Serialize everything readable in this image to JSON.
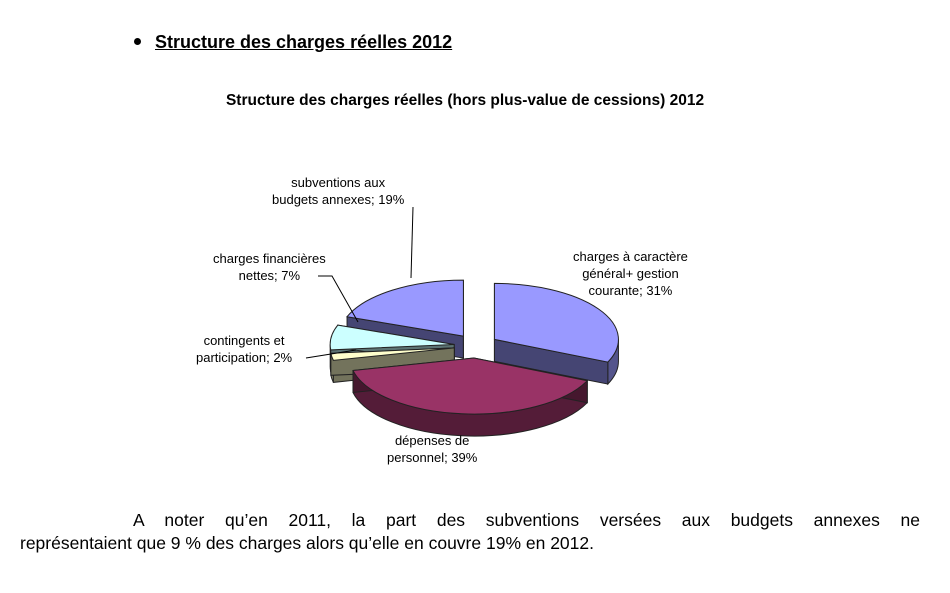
{
  "heading": "Structure des charges réelles 2012",
  "chart_data": {
    "type": "pie",
    "title": "Structure des charges réelles (hors plus-value de cessions) 2012",
    "slices": [
      {
        "label_lines": [
          "charges à caractère",
          "général+ gestion",
          "courante; 31%"
        ],
        "value": 31,
        "color": "#9999ff"
      },
      {
        "label_lines": [
          "dépenses de",
          "personnel; 39%"
        ],
        "value": 39,
        "color": "#993366"
      },
      {
        "label_lines": [
          "contingents et",
          "participation; 2%"
        ],
        "value": 2,
        "color": "#ffffcc"
      },
      {
        "label_lines": [
          "charges financières",
          "nettes; 7%"
        ],
        "value": 7,
        "color": "#ccffff"
      },
      {
        "label_lines": [
          "subventions aux",
          "budgets annexes; 19%"
        ],
        "value": 19,
        "color": "#9999ff"
      }
    ]
  },
  "paragraph": {
    "line1": "A noter qu’en 2011, la part des subventions versées aux budgets annexes ne",
    "line2": "représentaient que 9 % des charges alors qu’elle en couvre 19% en 2012."
  }
}
